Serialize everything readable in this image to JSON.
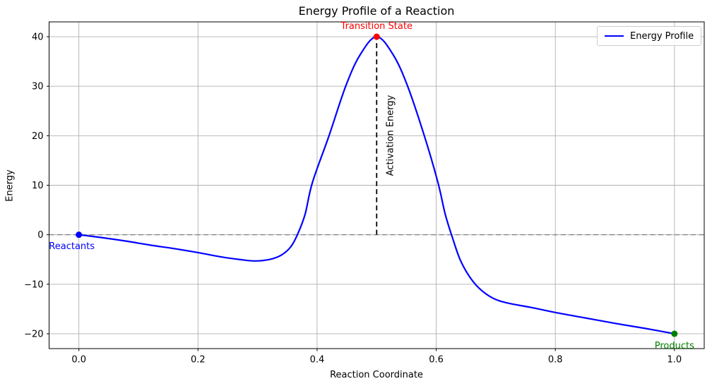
{
  "chart_data": {
    "type": "line",
    "title": "Energy Profile of a Reaction",
    "xlabel": "Reaction Coordinate",
    "ylabel": "Energy",
    "xlim": [
      -0.05,
      1.05
    ],
    "ylim": [
      -23,
      43
    ],
    "xticks": [
      0.0,
      0.2,
      0.4,
      0.6,
      0.8,
      1.0
    ],
    "xtick_labels": [
      "0.0",
      "0.2",
      "0.4",
      "0.6",
      "0.8",
      "1.0"
    ],
    "yticks": [
      -20,
      -10,
      0,
      10,
      20,
      30,
      40
    ],
    "ytick_labels": [
      "−20",
      "−10",
      "0",
      "10",
      "20",
      "30",
      "40"
    ],
    "grid": true,
    "grid_color": "#b0b0b0",
    "legend": {
      "position": "upper right",
      "entries": [
        {
          "label": "Energy Profile",
          "color": "#0000ff"
        }
      ]
    },
    "series": [
      {
        "name": "Energy Profile",
        "color": "#0000ff",
        "line_width": 2.2,
        "points": [
          [
            0.0,
            0.0
          ],
          [
            0.04,
            -0.6
          ],
          [
            0.08,
            -1.3
          ],
          [
            0.12,
            -2.1
          ],
          [
            0.16,
            -2.8
          ],
          [
            0.2,
            -3.6
          ],
          [
            0.24,
            -4.5
          ],
          [
            0.27,
            -5.0
          ],
          [
            0.295,
            -5.3
          ],
          [
            0.32,
            -5.0
          ],
          [
            0.34,
            -4.1
          ],
          [
            0.356,
            -2.4
          ],
          [
            0.368,
            0.3
          ],
          [
            0.38,
            4.2
          ],
          [
            0.392,
            10.5
          ],
          [
            0.42,
            20.0
          ],
          [
            0.448,
            30.0
          ],
          [
            0.472,
            36.3
          ],
          [
            0.5,
            40.0
          ],
          [
            0.528,
            36.3
          ],
          [
            0.552,
            30.0
          ],
          [
            0.58,
            20.0
          ],
          [
            0.603,
            10.5
          ],
          [
            0.615,
            4.2
          ],
          [
            0.627,
            -0.5
          ],
          [
            0.64,
            -5.0
          ],
          [
            0.655,
            -8.3
          ],
          [
            0.672,
            -10.8
          ],
          [
            0.695,
            -12.8
          ],
          [
            0.72,
            -13.8
          ],
          [
            0.76,
            -14.7
          ],
          [
            0.8,
            -15.7
          ],
          [
            0.85,
            -16.8
          ],
          [
            0.9,
            -17.9
          ],
          [
            0.95,
            -18.9
          ],
          [
            1.0,
            -20.0
          ]
        ]
      }
    ],
    "reference_lines": [
      {
        "orientation": "horizontal",
        "y": 0,
        "color": "#808080",
        "style": "dashed",
        "width": 1.3
      },
      {
        "orientation": "vertical",
        "x": 0.5,
        "y_from": 0,
        "y_to": 40,
        "color": "#000000",
        "style": "dashed",
        "width": 1.8
      }
    ],
    "markers": [
      {
        "x": 0.0,
        "y": 0,
        "color": "#0000ff",
        "radius": 4.5
      },
      {
        "x": 0.5,
        "y": 40,
        "color": "#ff0000",
        "radius": 4.5
      },
      {
        "x": 1.0,
        "y": -20,
        "color": "#008000",
        "radius": 4.5
      }
    ],
    "annotations": [
      {
        "text": "Transition State",
        "x": 0.5,
        "y": 40,
        "color": "#ff0000",
        "placement": "above"
      },
      {
        "text": "Reactants",
        "x": 0.0,
        "y": 0,
        "color": "#0000ff",
        "placement": "below-left"
      },
      {
        "text": "Products",
        "x": 1.0,
        "y": -20,
        "color": "#008000",
        "placement": "below"
      },
      {
        "text": "Activation Energy",
        "x": 0.5,
        "y": 20,
        "color": "#000000",
        "placement": "right-rotated"
      }
    ]
  }
}
